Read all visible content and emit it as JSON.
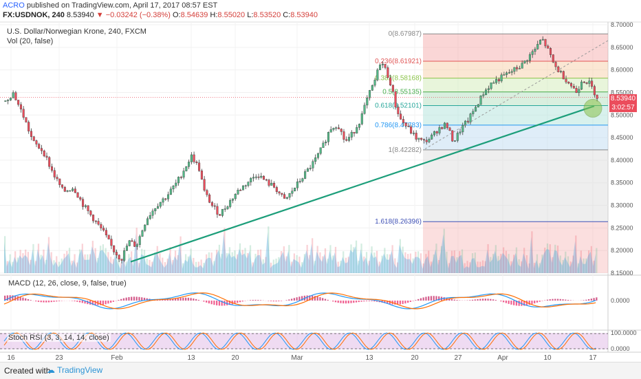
{
  "header": {
    "publisher": "ACRO",
    "published_text": "published on TradingView.com, April 17, 2017 08:57 EST"
  },
  "symbol_bar": {
    "symbol": "FX:USDNOK, 240",
    "last": "8.53940",
    "change": "▼ −0.03242 (−0.38%)",
    "ohlc_labels": [
      "O:",
      "H:",
      "L:",
      "C:"
    ],
    "ohlc_values": [
      "8.54639",
      "8.55020",
      "8.53520",
      "8.53940"
    ]
  },
  "chart_title": "U.S. Dollar/Norwegian Krone, 240, FXCM",
  "vol_label": "Vol (20, false)",
  "macd_label": "MACD (12, 26, close, 9, false, true)",
  "stoch_label": "Stoch RSI (3, 3, 14, 14, close)",
  "price_tags": {
    "last_price": "8.53940",
    "countdown": "3:02:57"
  },
  "footer": {
    "created_with": "Created with",
    "brand": "TradingView"
  },
  "colors": {
    "up": "#53b987",
    "down": "#eb4d5c",
    "trendline": "#1c9e7a",
    "macd": "#2196f3",
    "signal": "#ff6d00",
    "stoch_k": "#2196f3",
    "stoch_d": "#ff6d00"
  },
  "chart_data": [
    {
      "type": "candlestick",
      "title": "U.S. Dollar/Norwegian Krone, 240, FXCM",
      "x_tick_labels": [
        "16",
        "23",
        "Feb",
        "13",
        "20",
        "Mar",
        "13",
        "20",
        "27",
        "Apr",
        "10",
        "17"
      ],
      "y_tick_labels": [
        "8.70000",
        "8.65000",
        "8.60000",
        "8.55000",
        "8.50000",
        "8.45000",
        "8.40000",
        "8.35000",
        "8.30000",
        "8.25000",
        "8.20000",
        "8.15000"
      ],
      "ylim": [
        8.15,
        8.7
      ],
      "price_points": [
        [
          0,
          8.53
        ],
        [
          6,
          8.55
        ],
        [
          14,
          8.5
        ],
        [
          22,
          8.44
        ],
        [
          30,
          8.42
        ],
        [
          38,
          8.37
        ],
        [
          46,
          8.33
        ],
        [
          54,
          8.34
        ],
        [
          62,
          8.3
        ],
        [
          70,
          8.27
        ],
        [
          78,
          8.24
        ],
        [
          86,
          8.2
        ],
        [
          92,
          8.18
        ],
        [
          98,
          8.22
        ],
        [
          104,
          8.21
        ],
        [
          112,
          8.27
        ],
        [
          120,
          8.3
        ],
        [
          128,
          8.32
        ],
        [
          136,
          8.35
        ],
        [
          142,
          8.38
        ],
        [
          148,
          8.41
        ],
        [
          154,
          8.38
        ],
        [
          158,
          8.33
        ],
        [
          164,
          8.3
        ],
        [
          170,
          8.28
        ],
        [
          176,
          8.3
        ],
        [
          184,
          8.33
        ],
        [
          192,
          8.35
        ],
        [
          200,
          8.37
        ],
        [
          208,
          8.35
        ],
        [
          214,
          8.34
        ],
        [
          222,
          8.31
        ],
        [
          230,
          8.34
        ],
        [
          238,
          8.37
        ],
        [
          246,
          8.4
        ],
        [
          252,
          8.43
        ],
        [
          258,
          8.47
        ],
        [
          264,
          8.48
        ],
        [
          270,
          8.44
        ],
        [
          276,
          8.46
        ],
        [
          282,
          8.49
        ],
        [
          288,
          8.54
        ],
        [
          294,
          8.58
        ],
        [
          298,
          8.62
        ],
        [
          302,
          8.6
        ],
        [
          306,
          8.57
        ],
        [
          310,
          8.52
        ],
        [
          314,
          8.49
        ],
        [
          320,
          8.47
        ],
        [
          326,
          8.45
        ],
        [
          332,
          8.44
        ],
        [
          338,
          8.45
        ],
        [
          344,
          8.47
        ],
        [
          350,
          8.48
        ],
        [
          356,
          8.44
        ],
        [
          362,
          8.47
        ],
        [
          368,
          8.49
        ],
        [
          374,
          8.52
        ],
        [
          380,
          8.55
        ],
        [
          386,
          8.57
        ],
        [
          392,
          8.58
        ],
        [
          398,
          8.59
        ],
        [
          404,
          8.6
        ],
        [
          410,
          8.61
        ],
        [
          416,
          8.63
        ],
        [
          422,
          8.65
        ],
        [
          426,
          8.67
        ],
        [
          430,
          8.65
        ],
        [
          436,
          8.61
        ],
        [
          442,
          8.59
        ],
        [
          448,
          8.57
        ],
        [
          454,
          8.55
        ],
        [
          458,
          8.58
        ],
        [
          464,
          8.57
        ],
        [
          470,
          8.54
        ]
      ],
      "series": [
        {
          "name": "",
          "type": "trendline",
          "points": [
            [
              "Feb 1",
              8.175
            ],
            [
              "Apr 17",
              8.52
            ]
          ]
        }
      ],
      "fibonacci_levels": [
        {
          "label": "0(8.67987)",
          "level": 0,
          "value": 8.67987
        },
        {
          "label": "0.236(8.61921)",
          "level": 0.236,
          "value": 8.61921
        },
        {
          "label": "0.382(8.58168)",
          "level": 0.382,
          "value": 8.58168
        },
        {
          "label": "0.5(8.55135)",
          "level": 0.5,
          "value": 8.55135
        },
        {
          "label": "0.618(8.52101)",
          "level": 0.618,
          "value": 8.52101
        },
        {
          "label": "0.786(8.47783)",
          "level": 0.786,
          "value": 8.47783
        },
        {
          "label": "1(8.42282)",
          "level": 1,
          "value": 8.42282
        },
        {
          "label": "1.618(8.26396)",
          "level": 1.618,
          "value": 8.26396
        }
      ]
    },
    {
      "type": "line",
      "title": "MACD (12, 26, close, 9, false, true)",
      "y_tick_labels": [
        "0.0000"
      ]
    },
    {
      "type": "line",
      "title": "Stoch RSI (3, 3, 14, 14, close)",
      "y_tick_labels": [
        "100.0000",
        "0.0000"
      ]
    }
  ]
}
